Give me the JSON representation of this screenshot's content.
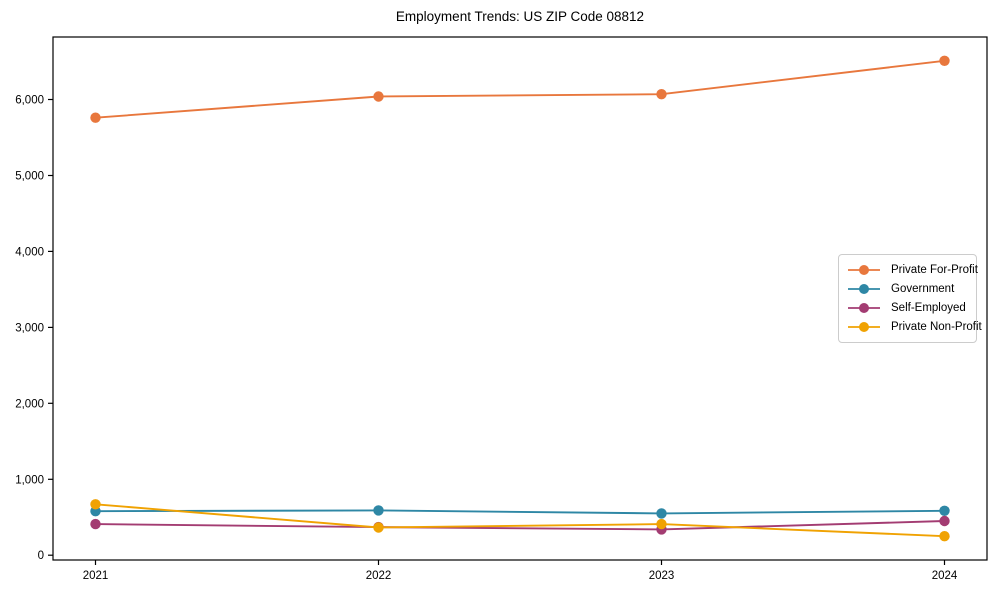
{
  "chart_data": {
    "type": "line",
    "title": "Employment Trends: US ZIP Code 08812",
    "x": [
      2021,
      2022,
      2023,
      2024
    ],
    "x_tick_labels": [
      "2021",
      "2022",
      "2023",
      "2024"
    ],
    "y_ticks": [
      0,
      1000,
      2000,
      3000,
      4000,
      5000,
      6000
    ],
    "y_tick_labels": [
      "0",
      "1,000",
      "2,000",
      "3,000",
      "4,000",
      "5,000",
      "6,000"
    ],
    "xlim": [
      2020.85,
      2024.15
    ],
    "ylim": [
      -63,
      6823
    ],
    "xlabel": "",
    "ylabel": "",
    "grid": false,
    "legend_position": "center-right",
    "frame_color": "#000000",
    "series": [
      {
        "name": "Private For-Profit",
        "color": "#e8773d",
        "values": [
          5760,
          6040,
          6070,
          6510
        ]
      },
      {
        "name": "Government",
        "color": "#2e87a5",
        "values": [
          580,
          590,
          550,
          585
        ]
      },
      {
        "name": "Self-Employed",
        "color": "#a33c72",
        "values": [
          410,
          370,
          340,
          450
        ]
      },
      {
        "name": "Private Non-Profit",
        "color": "#f0a202",
        "values": [
          670,
          365,
          410,
          250
        ]
      }
    ]
  }
}
